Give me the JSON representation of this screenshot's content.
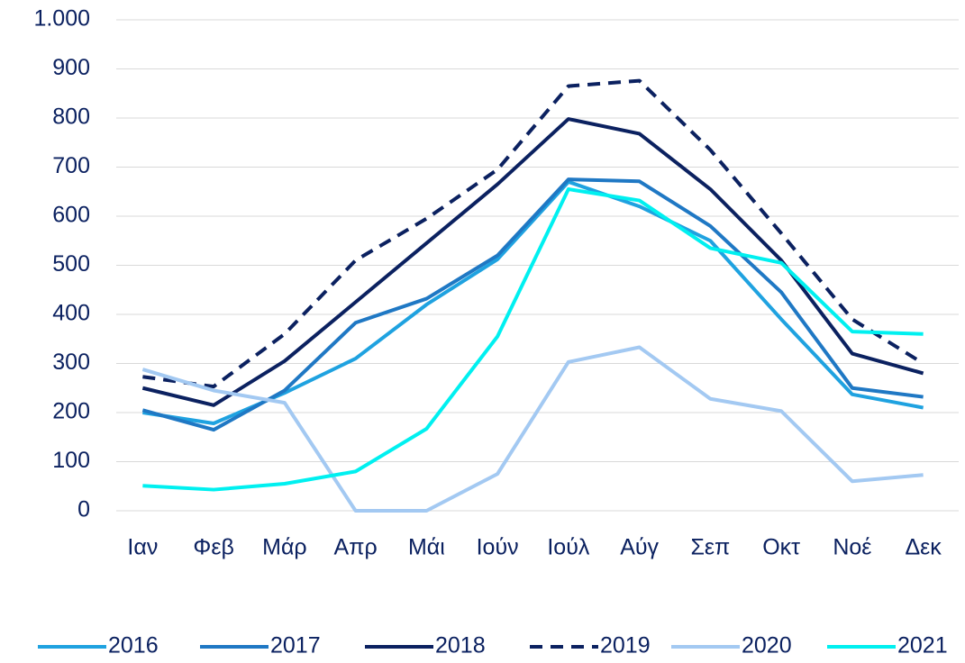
{
  "chart_data": {
    "type": "line",
    "categories": [
      "Ιαν",
      "Φεβ",
      "Μάρ",
      "Απρ",
      "Μάι",
      "Ιούν",
      "Ιούλ",
      "Αύγ",
      "Σεπ",
      "Οκτ",
      "Νοέ",
      "Δεκ"
    ],
    "series": [
      {
        "name": "2016",
        "color": "#1fa2e0",
        "dash": false,
        "values": [
          200,
          178,
          240,
          310,
          420,
          512,
          670,
          620,
          550,
          390,
          237,
          210
        ]
      },
      {
        "name": "2017",
        "color": "#1f78c4",
        "dash": false,
        "values": [
          205,
          165,
          245,
          383,
          432,
          520,
          675,
          671,
          580,
          445,
          250,
          232
        ]
      },
      {
        "name": "2018",
        "color": "#0b2160",
        "dash": false,
        "values": [
          250,
          215,
          305,
          425,
          545,
          665,
          798,
          768,
          655,
          510,
          320,
          280
        ]
      },
      {
        "name": "2019",
        "color": "#0b2160",
        "dash": true,
        "values": [
          273,
          253,
          360,
          510,
          595,
          695,
          865,
          876,
          735,
          565,
          390,
          300
        ]
      },
      {
        "name": "2020",
        "color": "#a3c9f2",
        "dash": false,
        "values": [
          288,
          245,
          220,
          0,
          0,
          75,
          303,
          333,
          228,
          203,
          60,
          73
        ]
      },
      {
        "name": "2021",
        "color": "#00f0f0",
        "dash": false,
        "values": [
          51,
          43,
          55,
          80,
          167,
          355,
          655,
          632,
          535,
          505,
          365,
          360
        ]
      }
    ],
    "ylim": [
      0,
      1000
    ],
    "yticks": [
      0,
      100,
      200,
      300,
      400,
      500,
      600,
      700,
      800,
      900,
      {
        "value": 1000,
        "label": "1.000"
      }
    ],
    "grid": true,
    "legend": "bottom"
  }
}
